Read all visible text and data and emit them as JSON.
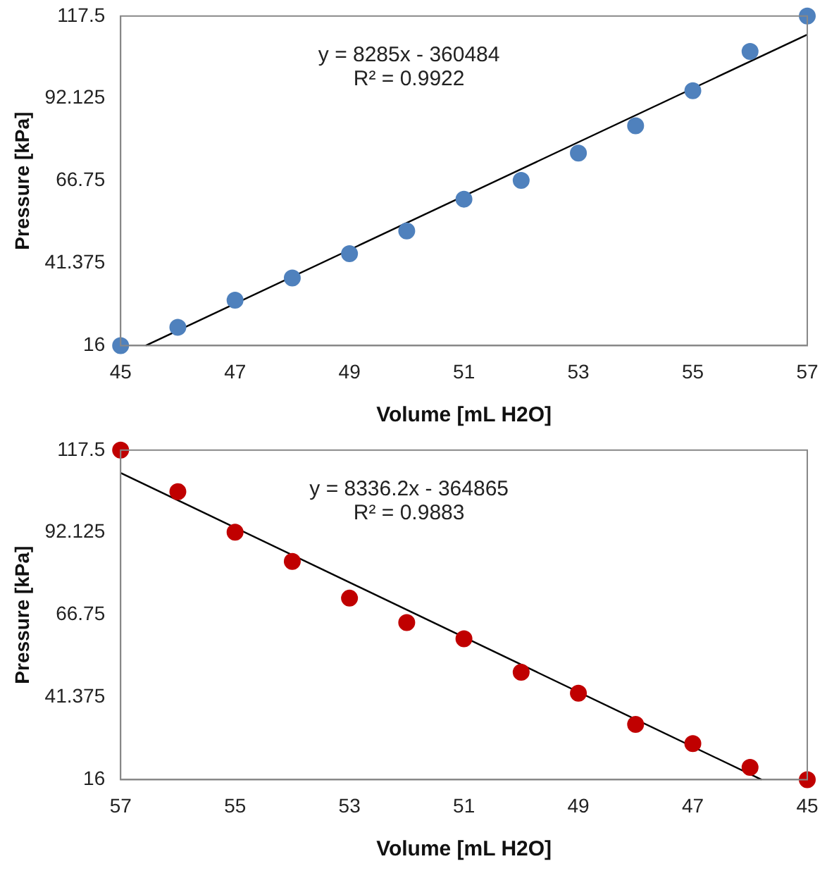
{
  "chart_data": [
    {
      "type": "scatter",
      "xlabel": "Volume [mL H2O]",
      "ylabel": "Pressure [kPa]",
      "marker": "circle",
      "grid": false,
      "xlim": [
        45,
        57
      ],
      "xticks": [
        45,
        47,
        49,
        51,
        53,
        55,
        57
      ],
      "ylim": [
        16,
        117.5
      ],
      "yticks": [
        16,
        41.375,
        66.75,
        92.125,
        117.5
      ],
      "annotations": [
        "y = 8285x - 360484",
        "R² = 0.9922"
      ],
      "series": [
        {
          "color": "#4f81bd",
          "x": [
            45,
            46,
            47,
            48,
            49,
            50,
            51,
            52,
            53,
            54,
            55,
            56,
            57
          ],
          "values": [
            16,
            21.6,
            30,
            36.8,
            44.3,
            51.3,
            61.1,
            66.9,
            75.3,
            83.7,
            94.5,
            106.6,
            117.5
          ]
        },
        {
          "type": "line",
          "marker": "none",
          "color": "#000000",
          "x": [
            45.44,
            57
          ],
          "values": [
            16,
            111.8
          ]
        }
      ]
    },
    {
      "type": "scatter",
      "xlabel": "Volume [mL H2O]",
      "ylabel": "Pressure [kPa]",
      "marker": "circle",
      "grid": false,
      "xlim": [
        57,
        45
      ],
      "xticks": [
        57,
        55,
        53,
        51,
        49,
        47,
        45
      ],
      "ylim": [
        16,
        117.5
      ],
      "yticks": [
        16,
        41.375,
        66.75,
        92.125,
        117.5
      ],
      "annotations": [
        "y = 8336.2x - 364865",
        "R² = 0.9883"
      ],
      "series": [
        {
          "color": "#c00000",
          "x": [
            57,
            56,
            55,
            54,
            53,
            52,
            51,
            50,
            49,
            48,
            47,
            46,
            45
          ],
          "values": [
            117.5,
            104.7,
            92.2,
            83.2,
            71.9,
            64.4,
            59.4,
            49.1,
            42.6,
            33,
            27.1,
            19.8,
            16
          ]
        },
        {
          "type": "line",
          "marker": "none",
          "color": "#000000",
          "x": [
            57,
            45.8
          ],
          "values": [
            110.5,
            16
          ]
        }
      ]
    }
  ]
}
